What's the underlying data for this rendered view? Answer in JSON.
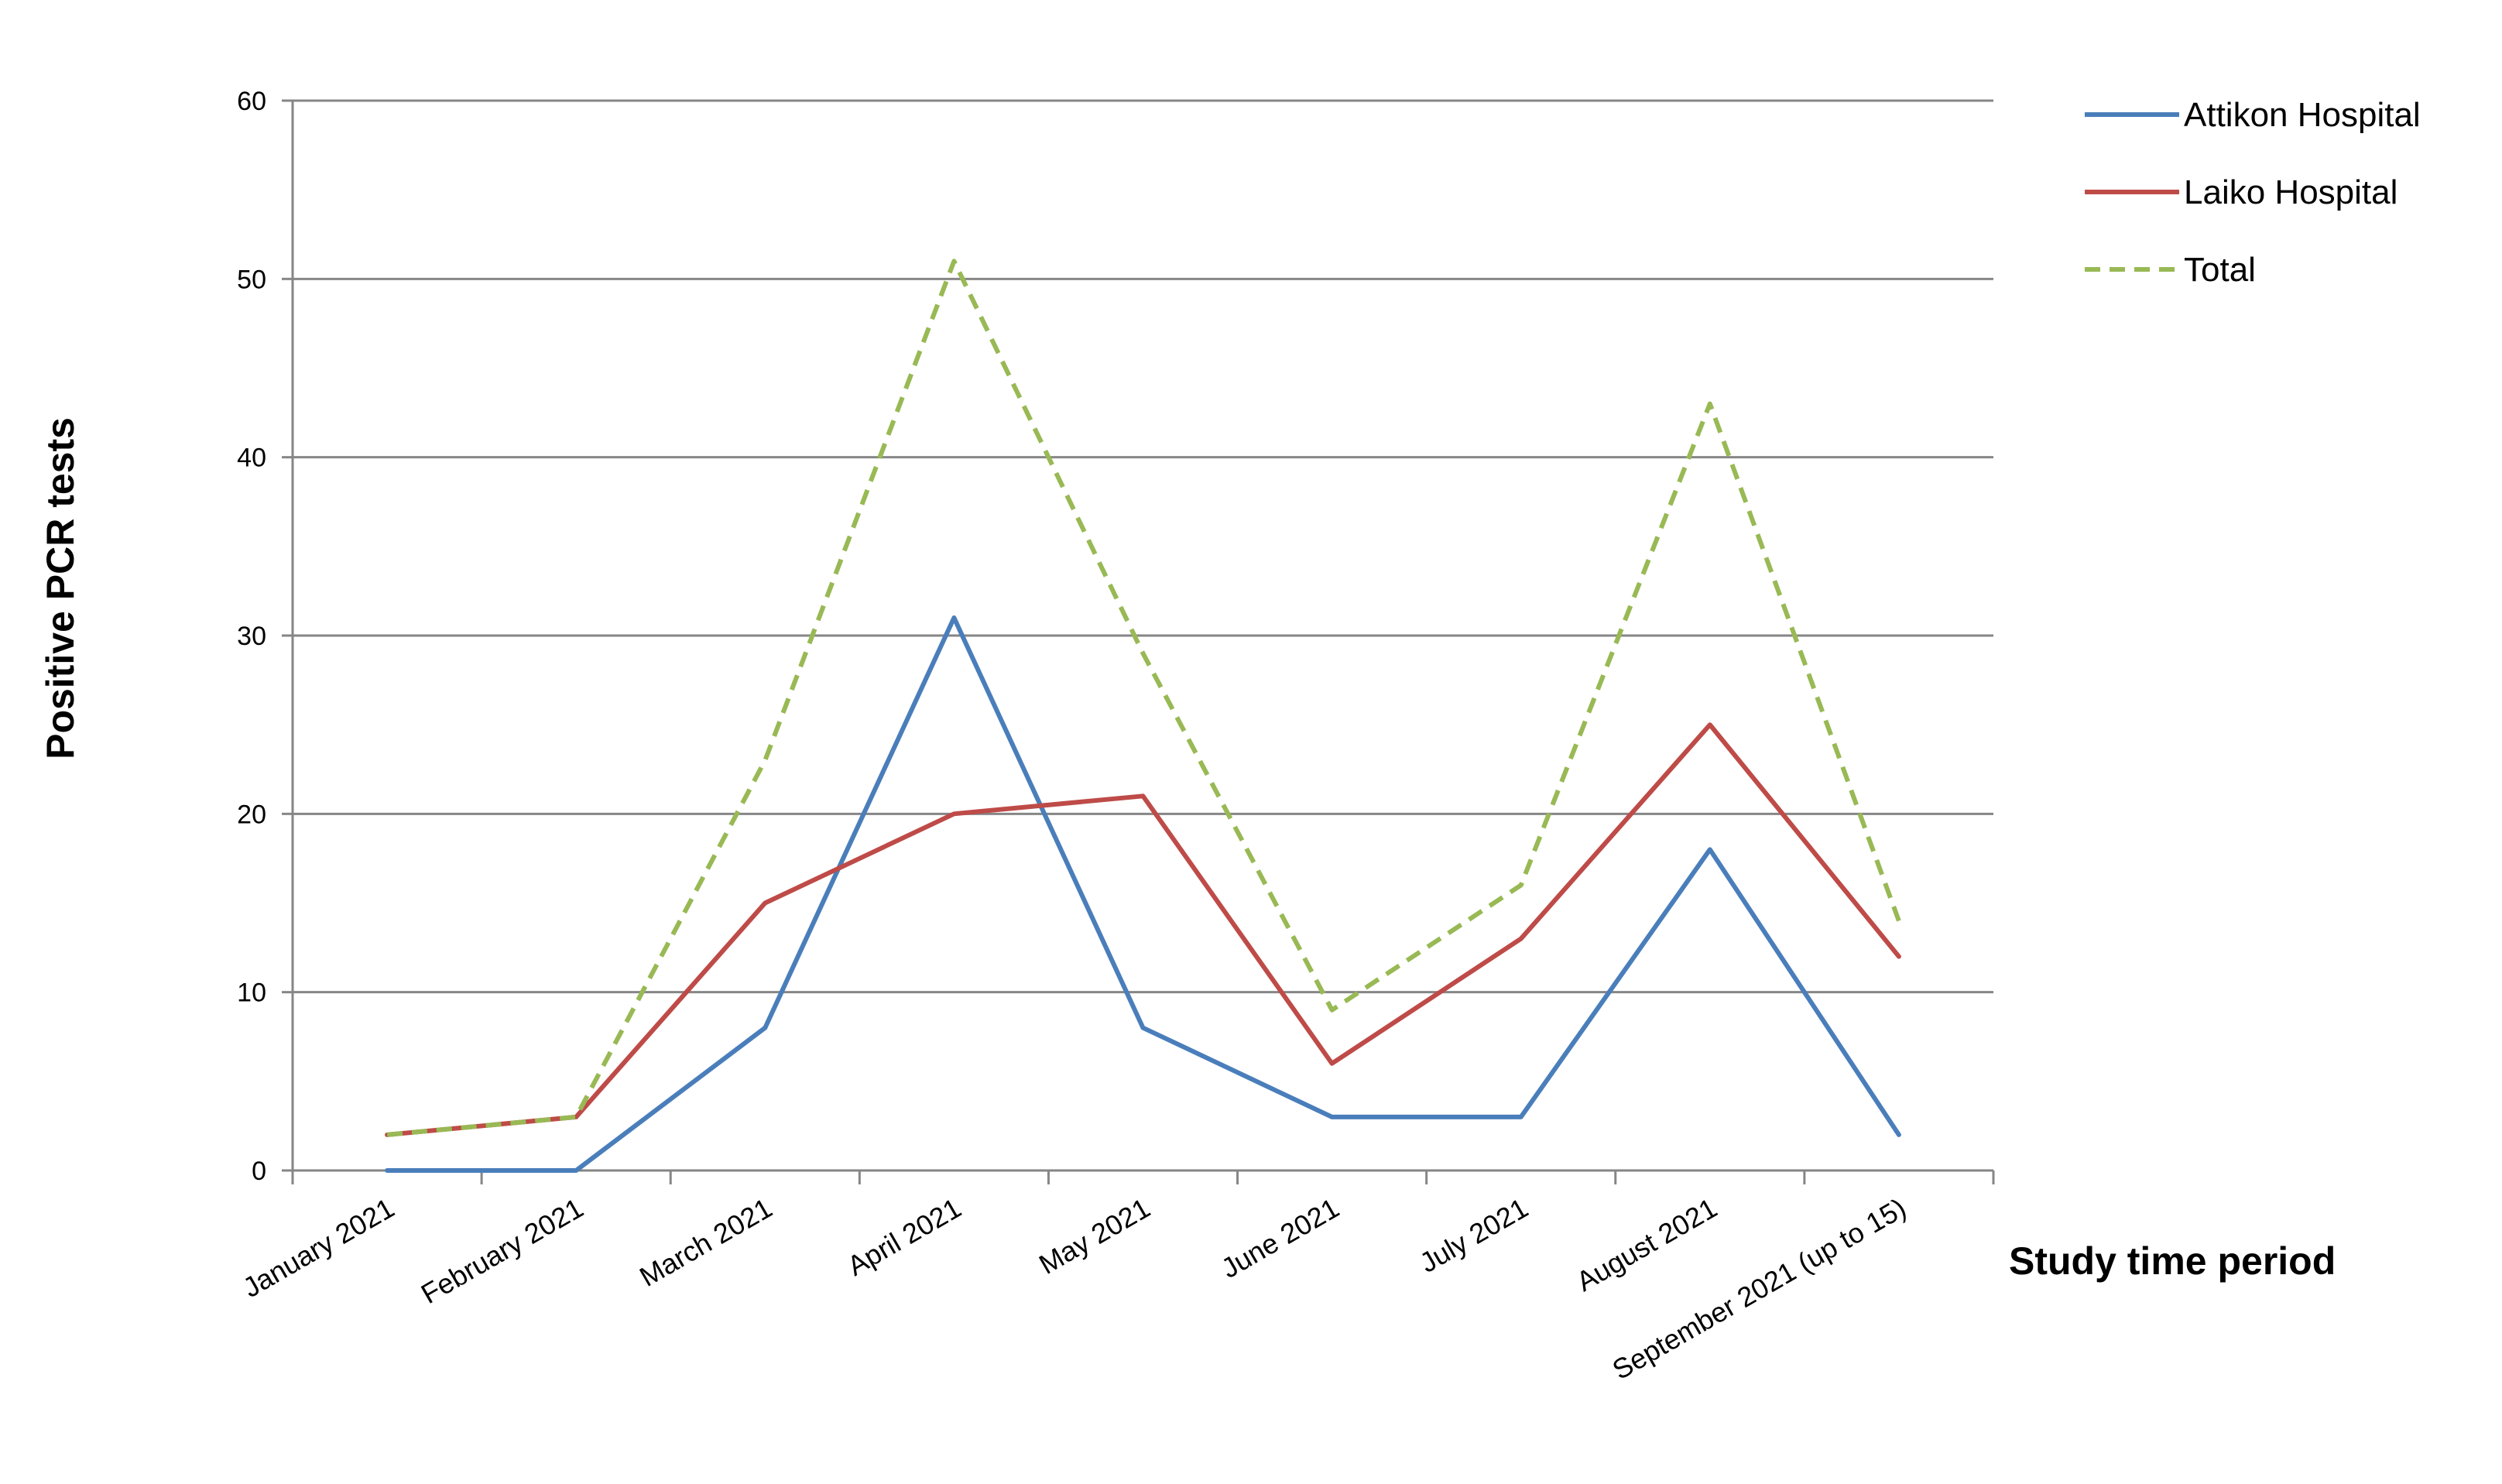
{
  "chart_data": {
    "type": "line",
    "title": "",
    "xlabel": "Study time period",
    "ylabel": "Positive PCR tests",
    "categories": [
      "January 2021",
      "February 2021",
      "March 2021",
      "April 2021",
      "May 2021",
      "June 2021",
      "July 2021",
      "August 2021",
      "September 2021 (up to 15)"
    ],
    "ylim": [
      0,
      60
    ],
    "yticks": [
      0,
      10,
      20,
      30,
      40,
      50,
      60
    ],
    "grid": "horizontal",
    "legend_position": "top-right",
    "series": [
      {
        "name": "Attikon Hospital",
        "color": "#4a7ebb",
        "style": "solid",
        "values": [
          0,
          0,
          8,
          31,
          8,
          3,
          3,
          18,
          2
        ]
      },
      {
        "name": "Laiko Hospital",
        "color": "#be4b48",
        "style": "solid",
        "values": [
          2,
          3,
          15,
          20,
          21,
          6,
          13,
          25,
          12
        ]
      },
      {
        "name": "Total",
        "color": "#98b954",
        "style": "dashed",
        "values": [
          2,
          3,
          23,
          51,
          29,
          9,
          16,
          43,
          14
        ]
      }
    ]
  }
}
